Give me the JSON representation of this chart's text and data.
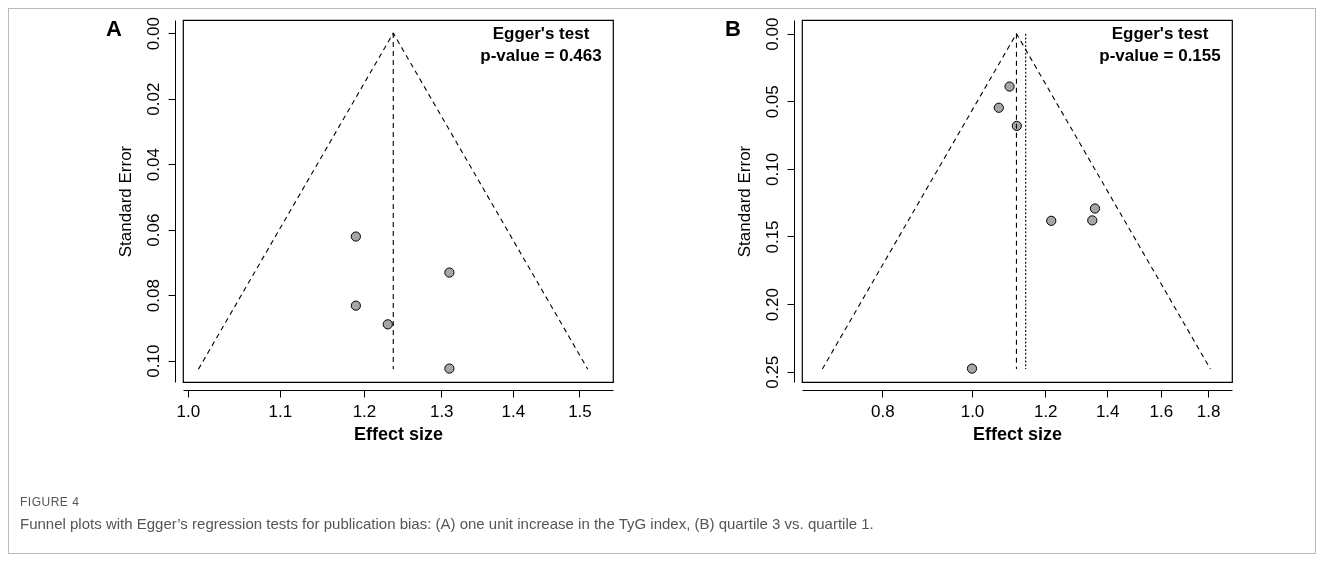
{
  "chart_data": [
    {
      "type": "scatter",
      "title": "A",
      "xlabel": "Effect size",
      "ylabel": "Standard Error",
      "log": "x",
      "grid": false,
      "xlim": [
        0.995,
        1.553
      ],
      "xticks": [
        {
          "value": 1.0,
          "label": "1.0"
        },
        1.1,
        1.2,
        1.3,
        1.4,
        1.5
      ],
      "ylim": [
        0.1065,
        -0.004
      ],
      "yticks": [
        {
          "value": 0,
          "label": "0.00"
        },
        0.02,
        0.04,
        0.06,
        0.08,
        {
          "value": 0.1,
          "label": "0.10"
        }
      ],
      "series": [
        {
          "marker": "circle",
          "color": "#a6a6a6",
          "x": [
            1.19,
            1.311,
            1.19,
            1.23,
            1.311
          ],
          "values": [
            0.0621,
            0.0731,
            0.0832,
            0.0889,
            0.1024
          ]
        },
        {
          "type": "line",
          "color": "#000000",
          "line_style": "dashed",
          "x": [
            1.011,
            1.237,
            1.513
          ],
          "values": [
            0.1026,
            0,
            0.1026
          ]
        },
        {
          "type": "line",
          "color": "#000000",
          "line_style": "dashed",
          "x": [
            1.237,
            1.237
          ],
          "values": [
            0,
            0.1026
          ]
        }
      ],
      "annotations": [
        "Egger's test",
        "p-value = 0.463",
        "FIGURE 4",
        "Funnel plots with Egger’s regression tests for publication bias: (A) one unit increase in the TyG index, (B) quartile 3 vs. quartile 1."
      ]
    },
    {
      "type": "scatter",
      "title": "B",
      "xlabel": "Effect size",
      "ylabel": "Standard Error",
      "log": "x",
      "grid": false,
      "xlim": [
        0.655,
        1.91
      ],
      "xticks": [
        0.8,
        {
          "value": 1.0,
          "label": "1.0"
        },
        1.2,
        1.4,
        1.6,
        1.8
      ],
      "ylim": [
        0.2576,
        -0.0101
      ],
      "yticks": [
        {
          "value": 0,
          "label": "0.00"
        },
        0.05,
        {
          "value": 0.1,
          "label": "0.10"
        },
        0.15,
        {
          "value": 0.2,
          "label": "0.20"
        },
        0.25
      ],
      "series": [
        {
          "marker": "circle",
          "color": "#a6a6a6",
          "x": [
            1.098,
            1.069,
            1.118,
            1.218,
            1.358,
            1.349,
            1.0
          ],
          "values": [
            0.0391,
            0.0548,
            0.0682,
            0.1384,
            0.1293,
            0.1381,
            0.2477
          ]
        },
        {
          "type": "line",
          "color": "#000000",
          "line_style": "dashed",
          "x": [
            0.689,
            1.117,
            1.81
          ],
          "values": [
            0.248,
            0,
            0.248
          ]
        },
        {
          "type": "line",
          "color": "#000000",
          "line_style": "dashed",
          "x": [
            1.117,
            1.117
          ],
          "values": [
            0,
            0.248
          ]
        },
        {
          "type": "line",
          "color": "#000000",
          "line_style": "dotted",
          "x": [
            1.143,
            1.143
          ],
          "values": [
            0,
            0.248
          ]
        }
      ],
      "annotations": [
        "Egger's test",
        "p-value = 0.155"
      ]
    }
  ]
}
